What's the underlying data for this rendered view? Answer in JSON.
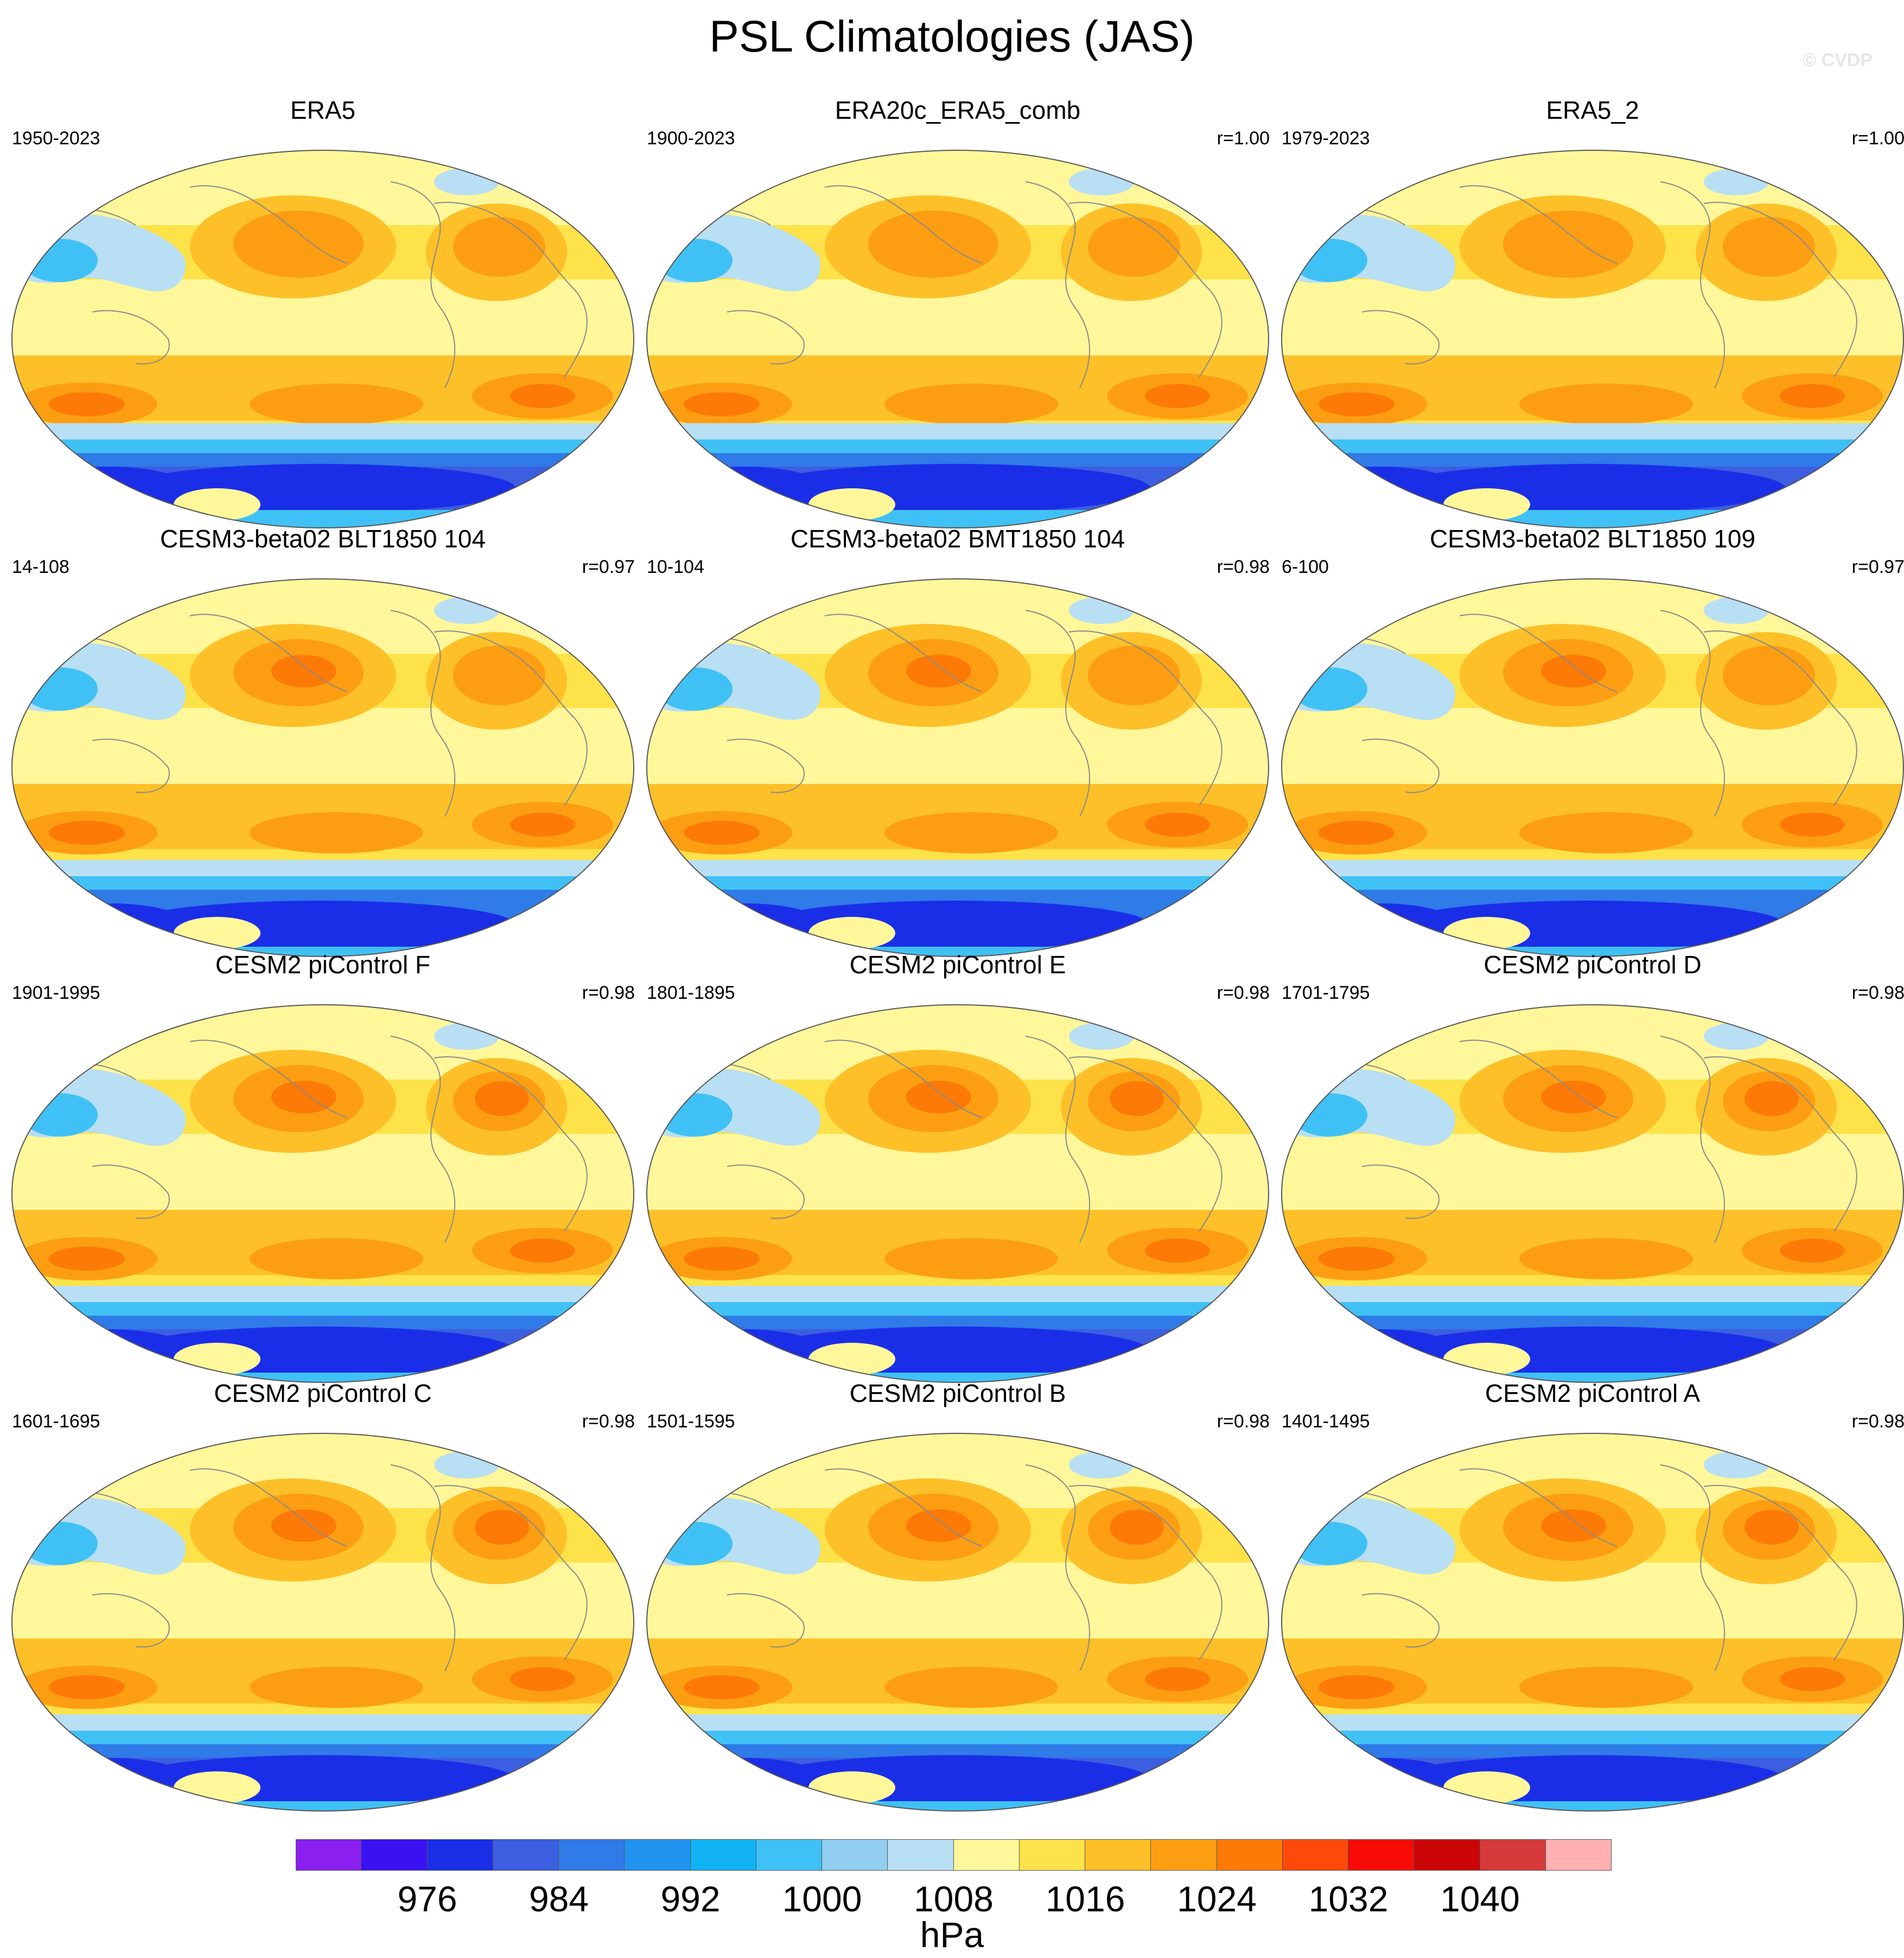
{
  "title": "PSL Climatologies (JAS)",
  "watermark": "© CVDP",
  "panels": [
    {
      "name": "ERA5",
      "period": "1950-2023",
      "corr": "",
      "south_low": "low"
    },
    {
      "name": "ERA20c_ERA5_comb",
      "period": "1900-2023",
      "corr": "r=1.00",
      "south_low": "low"
    },
    {
      "name": "ERA5_2",
      "period": "1979-2023",
      "corr": "r=1.00",
      "south_low": "low"
    },
    {
      "name": "CESM3-beta02 BLT1850 104",
      "period": "14-108",
      "corr": "r=0.97",
      "south_low": "mid"
    },
    {
      "name": "CESM3-beta02 BMT1850 104",
      "period": "10-104",
      "corr": "r=0.98",
      "south_low": "mid"
    },
    {
      "name": "CESM3-beta02 BLT1850 109",
      "period": "6-100",
      "corr": "r=0.97",
      "south_low": "mid"
    },
    {
      "name": "CESM2 piControl F",
      "period": "1901-1995",
      "corr": "r=0.98",
      "south_low": "deep"
    },
    {
      "name": "CESM2 piControl E",
      "period": "1801-1895",
      "corr": "r=0.98",
      "south_low": "deep"
    },
    {
      "name": "CESM2 piControl D",
      "period": "1701-1795",
      "corr": "r=0.98",
      "south_low": "deep"
    },
    {
      "name": "CESM2 piControl C",
      "period": "1601-1695",
      "corr": "r=0.98",
      "south_low": "deep"
    },
    {
      "name": "CESM2 piControl B",
      "period": "1501-1595",
      "corr": "r=0.98",
      "south_low": "deep"
    },
    {
      "name": "CESM2 piControl A",
      "period": "1401-1495",
      "corr": "r=0.98",
      "south_low": "deep"
    }
  ],
  "colorbar": {
    "units": "hPa",
    "labels": [
      "976",
      "984",
      "992",
      "1000",
      "1008",
      "1016",
      "1024",
      "1032",
      "1040"
    ],
    "colors": [
      "#8a1ff0",
      "#3a12f2",
      "#1a2ee8",
      "#3c5ee0",
      "#2f7be8",
      "#2093ef",
      "#10b2f4",
      "#40c1f5",
      "#90cdef",
      "#b8dff3",
      "#fff79a",
      "#fde24a",
      "#fdc028",
      "#fd9e12",
      "#fd7a07",
      "#fd4a0a",
      "#f80a05",
      "#cc0508",
      "#d63a3a",
      "#ffb0b0"
    ]
  },
  "contour_colors": {
    "deep_low": "#1a2ee8",
    "low": "#3c5ee0",
    "mid_low": "#2f7be8",
    "low_light": "#40c1f5",
    "pale_blue": "#b8dff3",
    "pale_yellow": "#fff79a",
    "yellow": "#fde24a",
    "light_orange": "#fdc028",
    "orange": "#fd9e12",
    "dark_orange": "#fd7a07"
  }
}
